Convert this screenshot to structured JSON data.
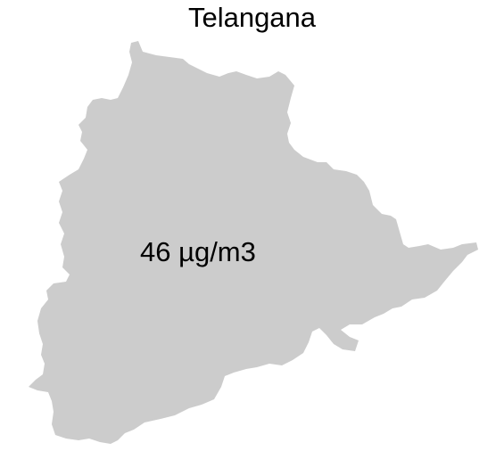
{
  "map": {
    "title": "Telangana",
    "region_label": "46 µg/m3",
    "fill_color": "#cccccc",
    "background_color": "#ffffff"
  }
}
